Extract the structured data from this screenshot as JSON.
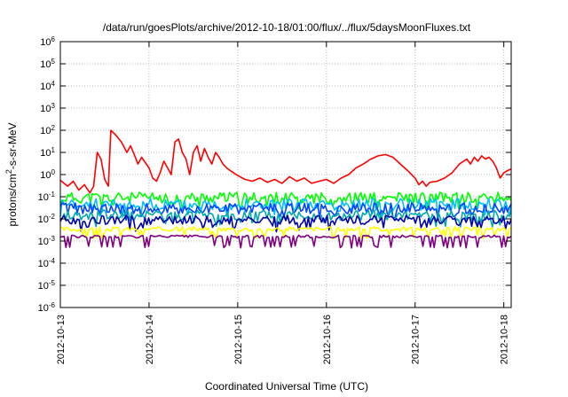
{
  "chart_data": {
    "type": "line",
    "title": "/data/run/goesPlots/archive/2012-10-18/01:00/flux/../flux/5daysMoonFluxes.txt",
    "xlabel": "Coordinated Universal Time (UTC)",
    "ylabel": "protons/cm²-s-sr-MeV",
    "x_range": [
      "2012-10-13",
      "2012-10-18 02:00"
    ],
    "x_ticks": [
      "2012-10-13",
      "2012-10-14",
      "2012-10-15",
      "2012-10-16",
      "2012-10-17",
      "2012-10-18"
    ],
    "y_scale": "log",
    "ylim": [
      1e-06,
      1000000.0
    ],
    "y_ticks": [
      "10-6",
      "10-5",
      "10-4",
      "10-3",
      "10-2",
      "10-1",
      "100",
      "101",
      "102",
      "103",
      "104",
      "105",
      "106"
    ],
    "grid": true,
    "legend": false,
    "series": [
      {
        "color": "#ff0000",
        "points": [
          [
            "2012-10-13 00:00",
            0.55
          ],
          [
            "2012-10-13 02:00",
            0.3
          ],
          [
            "2012-10-13 03:30",
            0.5
          ],
          [
            "2012-10-13 05:00",
            0.2
          ],
          [
            "2012-10-13 06:30",
            0.35
          ],
          [
            "2012-10-13 08:00",
            0.15
          ],
          [
            "2012-10-13 09:00",
            0.3
          ],
          [
            "2012-10-13 10:00",
            10
          ],
          [
            "2012-10-13 11:00",
            5
          ],
          [
            "2012-10-13 12:00",
            0.6
          ],
          [
            "2012-10-13 13:00",
            0.3
          ],
          [
            "2012-10-13 13:40",
            100
          ],
          [
            "2012-10-13 15:00",
            60
          ],
          [
            "2012-10-13 16:30",
            30
          ],
          [
            "2012-10-13 18:00",
            10
          ],
          [
            "2012-10-13 19:00",
            20
          ],
          [
            "2012-10-13 20:00",
            8
          ],
          [
            "2012-10-13 21:00",
            3
          ],
          [
            "2012-10-13 22:00",
            6
          ],
          [
            "2012-10-14 00:00",
            2
          ],
          [
            "2012-10-14 01:00",
            0.7
          ],
          [
            "2012-10-14 02:00",
            0.5
          ],
          [
            "2012-10-14 03:00",
            1.2
          ],
          [
            "2012-10-14 04:00",
            4
          ],
          [
            "2012-10-14 05:00",
            2
          ],
          [
            "2012-10-14 06:00",
            1
          ],
          [
            "2012-10-14 07:00",
            30
          ],
          [
            "2012-10-14 08:00",
            40
          ],
          [
            "2012-10-14 09:00",
            10
          ],
          [
            "2012-10-14 10:00",
            5
          ],
          [
            "2012-10-14 11:00",
            1
          ],
          [
            "2012-10-14 12:00",
            10
          ],
          [
            "2012-10-14 13:00",
            20
          ],
          [
            "2012-10-14 14:00",
            4
          ],
          [
            "2012-10-14 15:00",
            15
          ],
          [
            "2012-10-14 16:00",
            6
          ],
          [
            "2012-10-14 17:00",
            3
          ],
          [
            "2012-10-14 18:00",
            10
          ],
          [
            "2012-10-14 19:00",
            6
          ],
          [
            "2012-10-14 20:00",
            3
          ],
          [
            "2012-10-14 21:00",
            2
          ],
          [
            "2012-10-14 22:00",
            1.5
          ],
          [
            "2012-10-15 00:00",
            0.9
          ],
          [
            "2012-10-15 02:00",
            0.6
          ],
          [
            "2012-10-15 04:00",
            0.5
          ],
          [
            "2012-10-15 06:00",
            0.7
          ],
          [
            "2012-10-15 08:00",
            0.45
          ],
          [
            "2012-10-15 10:00",
            0.6
          ],
          [
            "2012-10-15 12:00",
            0.4
          ],
          [
            "2012-10-15 14:00",
            0.8
          ],
          [
            "2012-10-15 16:00",
            0.5
          ],
          [
            "2012-10-15 18:00",
            0.7
          ],
          [
            "2012-10-15 20:00",
            0.4
          ],
          [
            "2012-10-15 22:00",
            0.5
          ],
          [
            "2012-10-16 00:00",
            0.6
          ],
          [
            "2012-10-16 02:00",
            0.4
          ],
          [
            "2012-10-16 04:00",
            0.7
          ],
          [
            "2012-10-16 06:00",
            1
          ],
          [
            "2012-10-16 08:00",
            2
          ],
          [
            "2012-10-16 10:00",
            3
          ],
          [
            "2012-10-16 12:00",
            5
          ],
          [
            "2012-10-16 14:00",
            7
          ],
          [
            "2012-10-16 16:00",
            8
          ],
          [
            "2012-10-16 18:00",
            6
          ],
          [
            "2012-10-16 20:00",
            3
          ],
          [
            "2012-10-16 22:00",
            1.5
          ],
          [
            "2012-10-17 00:00",
            0.7
          ],
          [
            "2012-10-17 01:00",
            0.35
          ],
          [
            "2012-10-17 02:00",
            0.5
          ],
          [
            "2012-10-17 03:00",
            0.3
          ],
          [
            "2012-10-17 04:00",
            0.45
          ],
          [
            "2012-10-17 06:00",
            0.5
          ],
          [
            "2012-10-17 08:00",
            0.7
          ],
          [
            "2012-10-17 10:00",
            1.2
          ],
          [
            "2012-10-17 12:00",
            3
          ],
          [
            "2012-10-17 14:00",
            5
          ],
          [
            "2012-10-17 15:00",
            3
          ],
          [
            "2012-10-17 16:00",
            6
          ],
          [
            "2012-10-17 17:00",
            4
          ],
          [
            "2012-10-17 18:00",
            7
          ],
          [
            "2012-10-17 19:00",
            5
          ],
          [
            "2012-10-17 20:00",
            6
          ],
          [
            "2012-10-17 21:00",
            4
          ],
          [
            "2012-10-17 22:00",
            2
          ],
          [
            "2012-10-17 23:00",
            0.7
          ],
          [
            "2012-10-18 00:00",
            1.2
          ],
          [
            "2012-10-18 01:00",
            1.5
          ],
          [
            "2012-10-18 02:00",
            1.8
          ]
        ]
      },
      {
        "color": "#00ff00",
        "base": 0.09,
        "spread": 0.5,
        "seed": 11
      },
      {
        "color": "#00bfff",
        "base": 0.045,
        "spread": 0.55,
        "seed": 23
      },
      {
        "color": "#0044ff",
        "base": 0.03,
        "spread": 0.5,
        "seed": 37
      },
      {
        "color": "#00aaaa",
        "base": 0.015,
        "spread": 0.45,
        "seed": 41
      },
      {
        "color": "#0000aa",
        "base": 0.009,
        "spread": 0.4,
        "seed": 53
      },
      {
        "color": "#ffff00",
        "base": 0.0035,
        "spread": 0.2,
        "seed": 67
      },
      {
        "color": "#800080",
        "base": 0.0016,
        "spread": 0.12,
        "seed": 79,
        "dips": true
      }
    ]
  }
}
